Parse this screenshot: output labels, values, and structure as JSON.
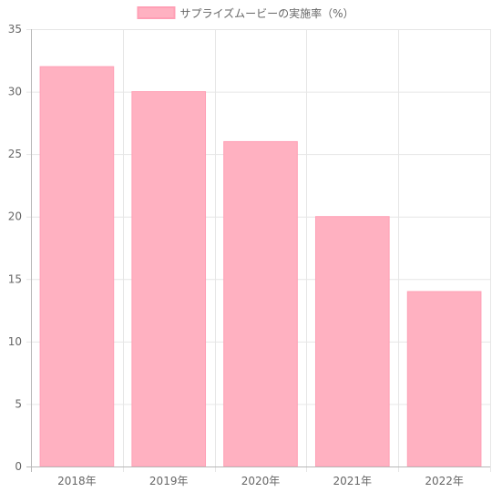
{
  "chart_data": {
    "type": "bar",
    "categories": [
      "2018年",
      "2019年",
      "2020年",
      "2021年",
      "2022年"
    ],
    "series": [
      {
        "name": "サプライズムービーの実施率（%）",
        "values": [
          32,
          30,
          26,
          20,
          14
        ]
      }
    ],
    "ylim": [
      0,
      35
    ],
    "yticks": [
      0,
      5,
      10,
      15,
      20,
      25,
      30,
      35
    ],
    "legend_position": "top",
    "grid": true,
    "colors": {
      "bar_fill": "#ffb1c1",
      "bar_border": "#ff9fb5",
      "grid": "#e6e6e6",
      "axis": "#b8b8b8"
    }
  }
}
